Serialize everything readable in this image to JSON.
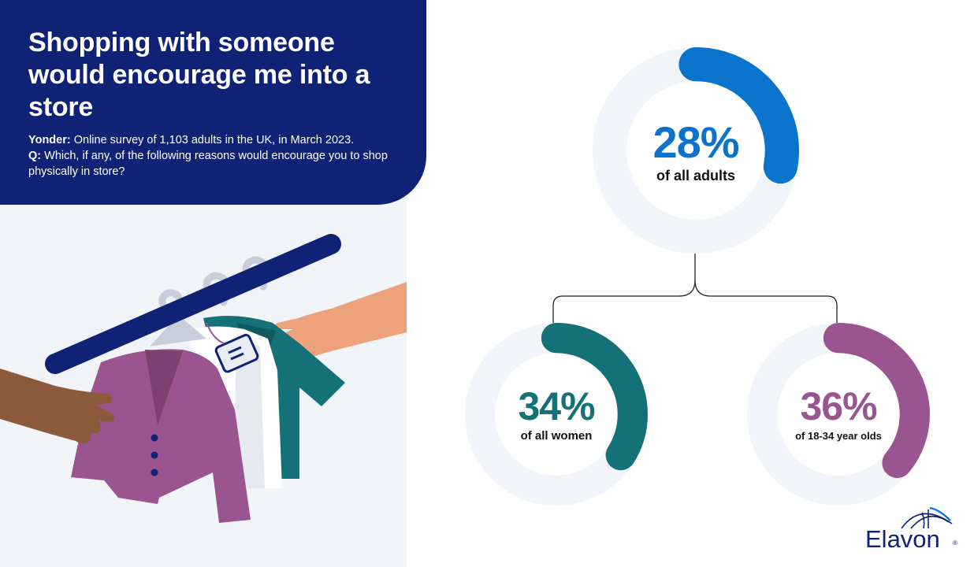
{
  "header": {
    "title": "Shopping with someone would encourage me into a store",
    "source_label": "Yonder:",
    "source_text": " Online survey of 1,103 adults in the UK, in March 2023.",
    "question_label": "Q:",
    "question_text": " Which, if any, of the following reasons would encourage you to shop physically in store?"
  },
  "stats": [
    {
      "value": 28,
      "label": "28%",
      "caption": "of all adults",
      "color": "#0a74cc"
    },
    {
      "value": 34,
      "label": "34%",
      "caption": "of all women",
      "color": "#137177"
    },
    {
      "value": 36,
      "label": "36%",
      "caption": "of 18-34 year olds",
      "color": "#9a5590"
    }
  ],
  "colors": {
    "navy": "#102275",
    "track": "#f1f4f8",
    "garment_purple": "#9a5590",
    "garment_teal": "#137177",
    "skin_light": "#eda27c",
    "skin_dark": "#8a5a3b"
  },
  "logo": {
    "text": "Elavon",
    "mark": "®"
  }
}
